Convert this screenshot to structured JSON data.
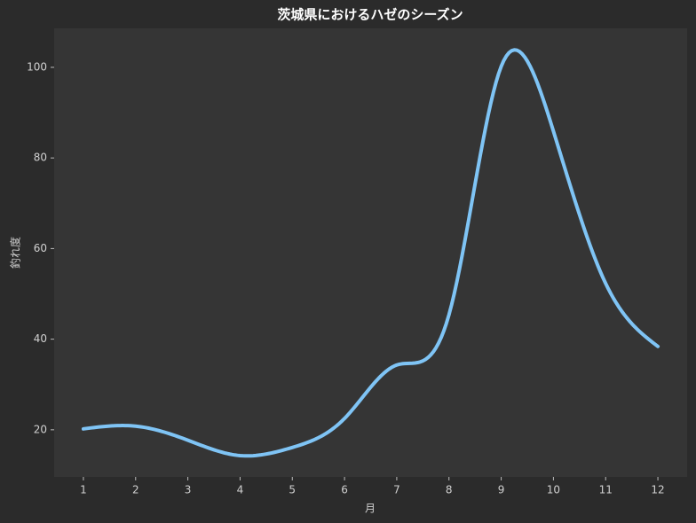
{
  "chart_data": {
    "type": "line",
    "title": "茨城県におけるハゼのシーズン",
    "x_label": "月",
    "y_label": "釣れ度",
    "x": [
      1,
      2,
      3,
      4,
      5,
      6,
      7,
      8,
      9,
      10,
      11,
      12
    ],
    "series": [
      {
        "name": "釣れ度",
        "color": "#7fc4f5",
        "values": [
          20.2,
          20.8,
          17.7,
          14.3,
          16.1,
          22.5,
          34.3,
          45.4,
          100.2,
          85.9,
          52.3,
          38.4
        ]
      }
    ],
    "xlim": [
      0.44,
      12.56
    ],
    "ylim": [
      9.6,
      108.6
    ],
    "xticks": [
      1,
      2,
      3,
      4,
      5,
      6,
      7,
      8,
      9,
      10,
      11,
      12
    ],
    "yticks": [
      20,
      40,
      60,
      80,
      100
    ],
    "grid": false,
    "smooth": true
  }
}
